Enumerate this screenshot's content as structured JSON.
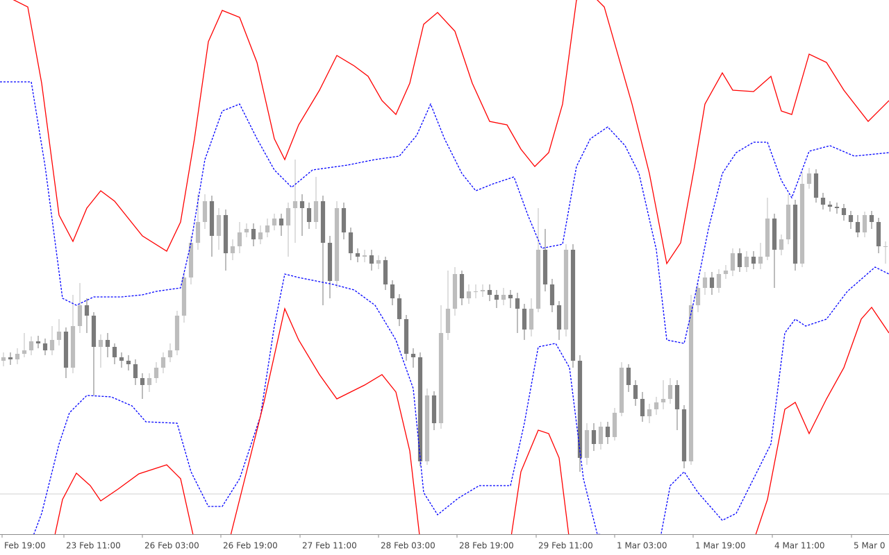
{
  "chart_data": {
    "type": "candlestick",
    "xlim": [
      0,
      128
    ],
    "ylim": [
      0,
      770
    ],
    "up_color": "#bdbdbd",
    "down_color": "#7a7a7a",
    "hline": 58,
    "hline_color": "#d0d0d0",
    "xticks": [
      {
        "value": 0.3,
        "label": "Feb 19:00"
      },
      {
        "value": 9.2,
        "label": "23 Feb 11:00"
      },
      {
        "value": 20.5,
        "label": "26 Feb 03:00"
      },
      {
        "value": 31.8,
        "label": "26 Feb 19:00"
      },
      {
        "value": 43.2,
        "label": "27 Feb 11:00"
      },
      {
        "value": 54.5,
        "label": "28 Feb 03:00"
      },
      {
        "value": 65.8,
        "label": "28 Feb 19:00"
      },
      {
        "value": 77.2,
        "label": "29 Feb 11:00"
      },
      {
        "value": 88.5,
        "label": "1 Mar 03:00"
      },
      {
        "value": 99.8,
        "label": "1 Mar 19:00"
      },
      {
        "value": 111.2,
        "label": "4 Mar 11:00"
      },
      {
        "value": 122.6,
        "label": "5 Mar 0"
      }
    ],
    "open": [
      250,
      255,
      252,
      260,
      265,
      278,
      275,
      265,
      280,
      292,
      240,
      300,
      330,
      315,
      270,
      280,
      270,
      255,
      250,
      245,
      225,
      215,
      225,
      240,
      255,
      265,
      315,
      370,
      420,
      450,
      480,
      430,
      460,
      405,
      415,
      435,
      440,
      425,
      435,
      445,
      455,
      445,
      470,
      480,
      470,
      450,
      480,
      420,
      365,
      470,
      435,
      405,
      400,
      402,
      390,
      395,
      360,
      340,
      310,
      260,
      255,
      105,
      200,
      160,
      290,
      325,
      375,
      340,
      350,
      350,
      352,
      345,
      338,
      345,
      340,
      325,
      295,
      325,
      410,
      360,
      330,
      295,
      410,
      250,
      110,
      150,
      130,
      155,
      140,
      175,
      240,
      215,
      195,
      170,
      180,
      190,
      195,
      215,
      180,
      105,
      330,
      355,
      370,
      355,
      375,
      380,
      405,
      385,
      400,
      390,
      400,
      455,
      410,
      425,
      475,
      390,
      505,
      520,
      485,
      475,
      472,
      470,
      460,
      450,
      435,
      460,
      450,
      415
    ],
    "high": [
      262,
      262,
      268,
      290,
      285,
      286,
      282,
      300,
      310,
      298,
      345,
      362,
      340,
      320,
      288,
      290,
      275,
      262,
      258,
      252,
      232,
      232,
      248,
      262,
      275,
      322,
      378,
      430,
      490,
      490,
      488,
      470,
      468,
      425,
      450,
      448,
      448,
      445,
      455,
      462,
      462,
      478,
      540,
      490,
      478,
      515,
      488,
      430,
      480,
      478,
      442,
      412,
      410,
      410,
      402,
      400,
      366,
      346,
      316,
      268,
      262,
      210,
      206,
      330,
      380,
      385,
      380,
      360,
      360,
      360,
      360,
      352,
      355,
      352,
      348,
      332,
      340,
      470,
      440,
      368,
      336,
      418,
      418,
      258,
      160,
      160,
      162,
      162,
      182,
      248,
      245,
      222,
      205,
      188,
      198,
      222,
      225,
      222,
      186,
      345,
      362,
      378,
      378,
      382,
      388,
      412,
      412,
      408,
      408,
      420,
      485,
      462,
      432,
      490,
      482,
      522,
      528,
      526,
      492,
      480,
      478,
      476,
      466,
      460,
      465,
      466,
      456,
      422
    ],
    "low": [
      242,
      244,
      245,
      255,
      258,
      268,
      258,
      258,
      272,
      225,
      232,
      290,
      290,
      200,
      240,
      255,
      245,
      240,
      236,
      215,
      195,
      205,
      218,
      232,
      248,
      258,
      305,
      360,
      410,
      440,
      400,
      410,
      380,
      395,
      405,
      428,
      415,
      418,
      428,
      438,
      430,
      400,
      420,
      430,
      440,
      440,
      330,
      340,
      355,
      425,
      395,
      392,
      392,
      380,
      382,
      352,
      330,
      300,
      250,
      240,
      98,
      100,
      150,
      152,
      280,
      315,
      330,
      332,
      340,
      342,
      336,
      326,
      330,
      326,
      290,
      280,
      285,
      320,
      350,
      320,
      280,
      285,
      240,
      90,
      100,
      120,
      122,
      130,
      135,
      170,
      205,
      185,
      162,
      160,
      172,
      180,
      188,
      150,
      95,
      100,
      320,
      345,
      345,
      348,
      368,
      372,
      378,
      378,
      382,
      382,
      395,
      355,
      402,
      418,
      380,
      385,
      498,
      478,
      468,
      465,
      462,
      452,
      440,
      428,
      428,
      440,
      405,
      390
    ],
    "close": [
      255,
      252,
      260,
      265,
      278,
      275,
      265,
      280,
      292,
      240,
      300,
      330,
      315,
      270,
      280,
      270,
      255,
      250,
      245,
      225,
      215,
      225,
      240,
      255,
      265,
      315,
      370,
      420,
      450,
      480,
      430,
      460,
      405,
      415,
      435,
      440,
      425,
      435,
      445,
      455,
      445,
      470,
      480,
      470,
      450,
      480,
      420,
      365,
      470,
      435,
      405,
      400,
      402,
      390,
      395,
      360,
      340,
      310,
      260,
      255,
      105,
      200,
      160,
      290,
      325,
      375,
      340,
      350,
      350,
      352,
      345,
      338,
      345,
      340,
      325,
      295,
      325,
      410,
      360,
      330,
      295,
      410,
      250,
      110,
      150,
      130,
      155,
      140,
      175,
      240,
      215,
      195,
      170,
      180,
      190,
      195,
      215,
      180,
      105,
      330,
      355,
      370,
      355,
      375,
      380,
      405,
      385,
      400,
      390,
      400,
      455,
      410,
      425,
      475,
      390,
      505,
      520,
      485,
      475,
      472,
      470,
      460,
      450,
      435,
      460,
      450,
      415,
      415
    ],
    "overlays": [
      {
        "color": "#ff0000",
        "dash": false,
        "x": [
          0,
          4,
          6,
          8.5,
          10.5,
          12.5,
          14.5,
          16.5,
          18.5,
          20.5,
          24,
          26,
          28,
          30,
          32,
          34.5,
          37,
          39.5,
          41,
          43,
          46,
          48.5,
          51,
          53,
          55,
          57,
          59,
          61,
          63,
          65.5,
          68,
          70.5,
          73,
          75,
          77,
          79,
          81,
          83,
          85,
          87,
          89,
          91,
          93.5,
          96,
          98,
          100,
          101.5,
          104,
          105.5,
          108.5,
          111,
          112.5,
          114,
          116.5,
          119,
          121.5,
          125,
          128
        ],
        "values": [
          780,
          760,
          650,
          460,
          422,
          470,
          495,
          480,
          455,
          430,
          408,
          450,
          570,
          710,
          755,
          745,
          680,
          570,
          540,
          590,
          640,
          690,
          675,
          660,
          625,
          605,
          650,
          735,
          752,
          725,
          650,
          595,
          590,
          555,
          530,
          550,
          620,
          770,
          780,
          760,
          690,
          620,
          520,
          390,
          420,
          530,
          620,
          665,
          640,
          638,
          660,
          610,
          605,
          692,
          680,
          640,
          595,
          625
        ]
      },
      {
        "color": "#0000ff",
        "dash": true,
        "x": [
          0,
          4.5,
          6.5,
          9,
          11,
          13.5,
          17.5,
          20.5,
          22.5,
          26,
          27.5,
          29.5,
          32,
          34.5,
          37,
          39.5,
          42,
          45,
          50,
          54,
          57.5,
          60,
          62,
          64,
          66.5,
          68.5,
          71,
          74,
          76,
          78,
          81,
          83,
          85,
          87.5,
          90,
          92,
          94.5,
          96,
          98.5,
          100,
          102,
          104,
          106,
          108.5,
          110.5,
          112.5,
          114,
          116.5,
          119.5,
          123,
          128
        ],
        "values": [
          652,
          652,
          530,
          340,
          330,
          342,
          342,
          345,
          350,
          355,
          420,
          540,
          610,
          620,
          570,
          525,
          500,
          525,
          532,
          540,
          545,
          575,
          620,
          570,
          520,
          495,
          505,
          515,
          460,
          412,
          418,
          530,
          570,
          587,
          560,
          520,
          410,
          280,
          275,
          340,
          440,
          520,
          550,
          565,
          565,
          510,
          485,
          552,
          560,
          545,
          550
        ]
      },
      {
        "color": "#0000ff",
        "dash": true,
        "x": [
          4.5,
          6,
          8.5,
          10,
          12.5,
          16,
          19,
          21,
          25.5,
          27.5,
          30,
          32,
          34.5,
          37.5,
          39.5,
          41,
          43,
          45.5,
          48,
          51,
          54,
          57,
          59.5,
          61,
          63,
          66,
          69,
          73.5,
          75.5,
          77.5,
          80,
          82,
          84,
          86,
          95,
          96.5,
          98.5,
          100.5,
          104,
          106,
          109,
          111,
          113,
          114.5,
          116,
          119,
          122,
          126,
          128
        ],
        "values": [
          -10,
          30,
          130,
          175,
          200,
          198,
          185,
          162,
          160,
          90,
          40,
          40,
          80,
          170,
          300,
          375,
          370,
          365,
          360,
          352,
          330,
          280,
          210,
          60,
          28,
          52,
          70,
          70,
          160,
          270,
          275,
          240,
          80,
          0,
          -10,
          70,
          90,
          60,
          20,
          30,
          90,
          130,
          290,
          310,
          300,
          310,
          350,
          385,
          375
        ]
      },
      {
        "color": "#ff0000",
        "dash": false,
        "x": [
          7.5,
          9,
          11,
          13,
          14.5,
          17,
          20,
          24,
          26,
          28,
          30,
          33,
          35,
          38,
          41,
          43,
          46,
          48.5,
          50.5,
          52.5,
          55,
          57,
          59,
          60.5,
          65,
          73.5,
          75,
          77.5,
          79,
          80.5,
          82,
          90,
          100,
          108.5,
          110.5,
          113,
          114.5,
          116.5,
          119,
          121.5,
          124,
          125.5,
          128
        ],
        "values": [
          -20,
          50,
          88,
          70,
          48,
          65,
          87,
          100,
          80,
          -10,
          -60,
          -10,
          70,
          190,
          325,
          280,
          230,
          195,
          205,
          215,
          230,
          205,
          120,
          -10,
          -60,
          -10,
          90,
          150,
          145,
          110,
          -10,
          -60,
          -60,
          -10,
          50,
          180,
          190,
          145,
          195,
          240,
          310,
          327,
          290
        ]
      }
    ]
  }
}
